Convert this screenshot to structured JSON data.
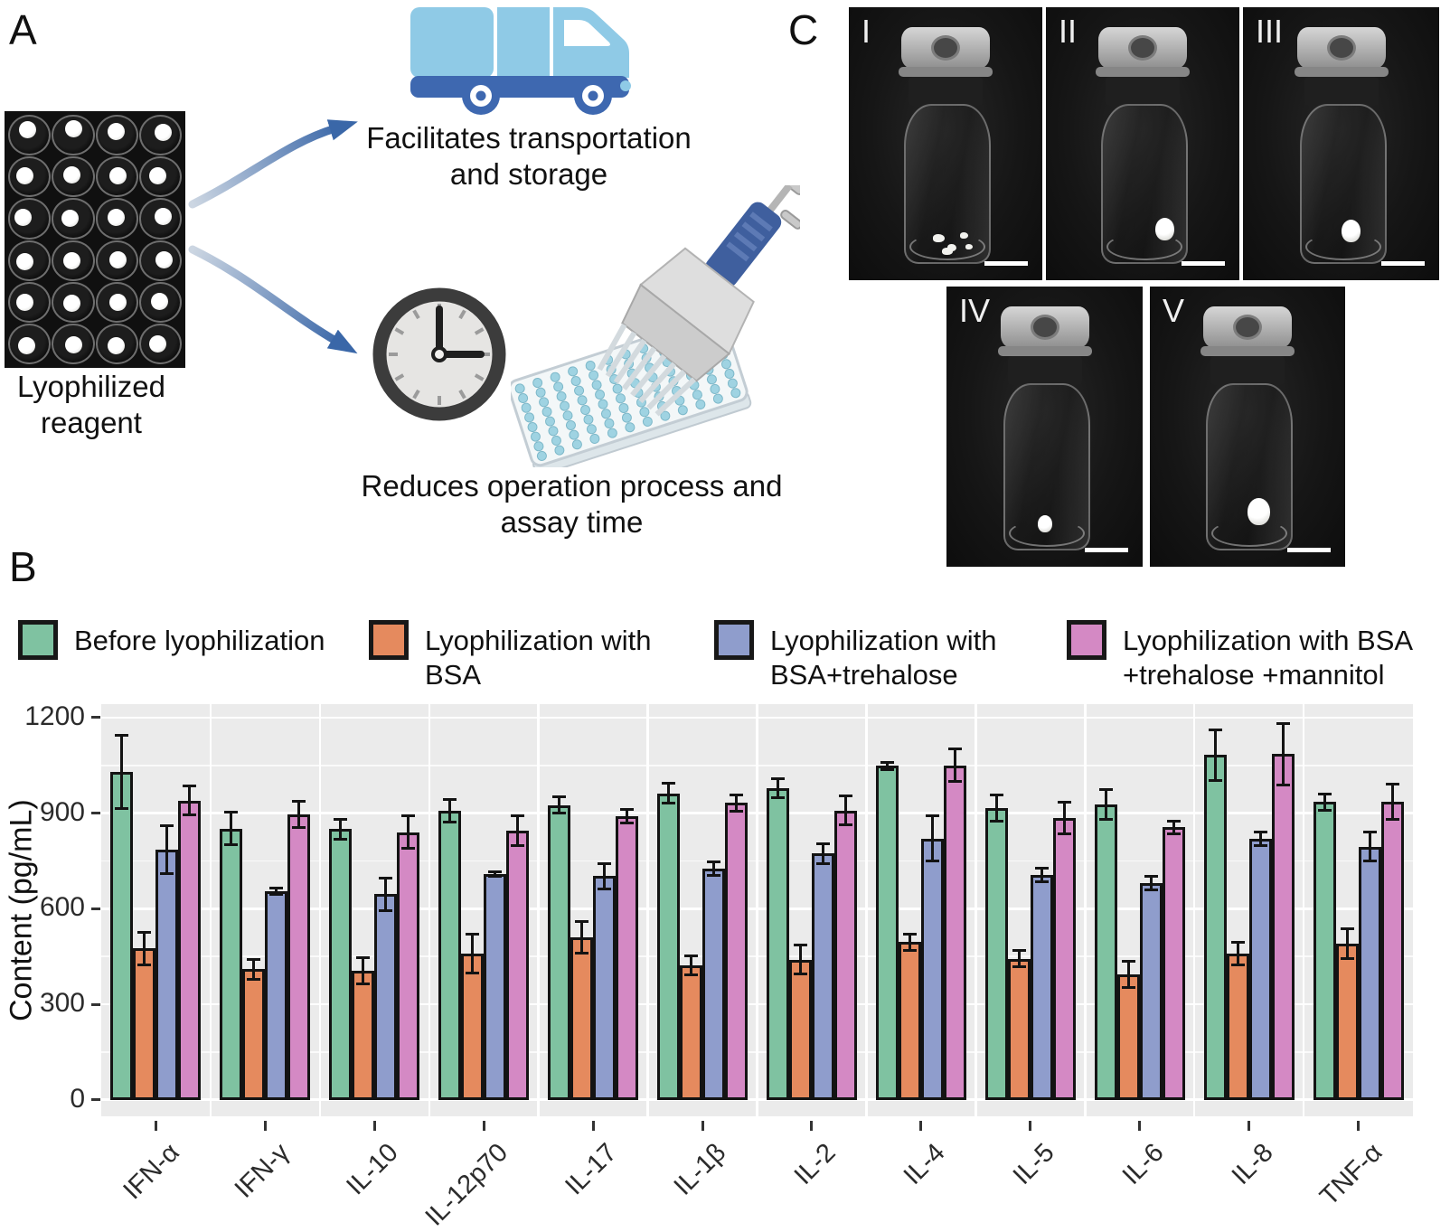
{
  "panel_a": {
    "label": "A",
    "plate_caption": "Lyophilized reagent",
    "truck_caption": "Facilitates transportation and storage",
    "clock_caption": "Reduces operation process and assay time",
    "plate": {
      "rows": 6,
      "cols": 4
    }
  },
  "panel_b": {
    "label": "B"
  },
  "panel_c": {
    "label": "C",
    "vials": [
      {
        "label": "I",
        "pellet": "fragments"
      },
      {
        "label": "II",
        "pellet": "ball"
      },
      {
        "label": "III",
        "pellet": "ball"
      },
      {
        "label": "IV",
        "pellet": "ball"
      },
      {
        "label": "V",
        "pellet": "ball"
      }
    ]
  },
  "chart_data": {
    "type": "bar",
    "title": "",
    "xlabel": "",
    "ylabel": "Content (pg/mL)",
    "ylim": [
      0,
      1242
    ],
    "yticks": [
      0,
      300,
      600,
      900,
      1200
    ],
    "grid": true,
    "legend_position": "top",
    "categories": [
      "IFN-α",
      "IFN-γ",
      "IL-10",
      "IL-12p70",
      "IL-17",
      "IL-1β",
      "IL-2",
      "IL-4",
      "IL-5",
      "IL-6",
      "IL-8",
      "TNF-α"
    ],
    "series": [
      {
        "name": "Before lyophilization",
        "color": "#7fc2a1",
        "values": [
          1030,
          852,
          850,
          908,
          925,
          962,
          978,
          1048,
          915,
          927,
          1082,
          935
        ],
        "errors": [
          120,
          55,
          35,
          40,
          30,
          35,
          35,
          15,
          45,
          50,
          85,
          30
        ]
      },
      {
        "name": "Lyophilization with BSA",
        "color": "#e58a5e",
        "values": [
          475,
          410,
          405,
          458,
          510,
          422,
          440,
          495,
          443,
          394,
          460,
          490
        ],
        "errors": [
          55,
          35,
          45,
          65,
          55,
          35,
          50,
          30,
          30,
          45,
          40,
          50
        ]
      },
      {
        "name": "Lyophilization with BSA+trehalose",
        "color": "#8f9dcc",
        "values": [
          785,
          655,
          645,
          708,
          702,
          726,
          773,
          820,
          705,
          680,
          820,
          795
        ],
        "errors": [
          80,
          15,
          55,
          12,
          45,
          25,
          35,
          75,
          25,
          25,
          25,
          50
        ]
      },
      {
        "name": "Lyophilization with BSA +trehalose +mannitol",
        "color": "#d489c4",
        "values": [
          940,
          897,
          840,
          845,
          890,
          932,
          908,
          1050,
          885,
          855,
          1085,
          935
        ],
        "errors": [
          50,
          45,
          55,
          50,
          25,
          30,
          50,
          55,
          55,
          25,
          100,
          60
        ]
      }
    ]
  }
}
